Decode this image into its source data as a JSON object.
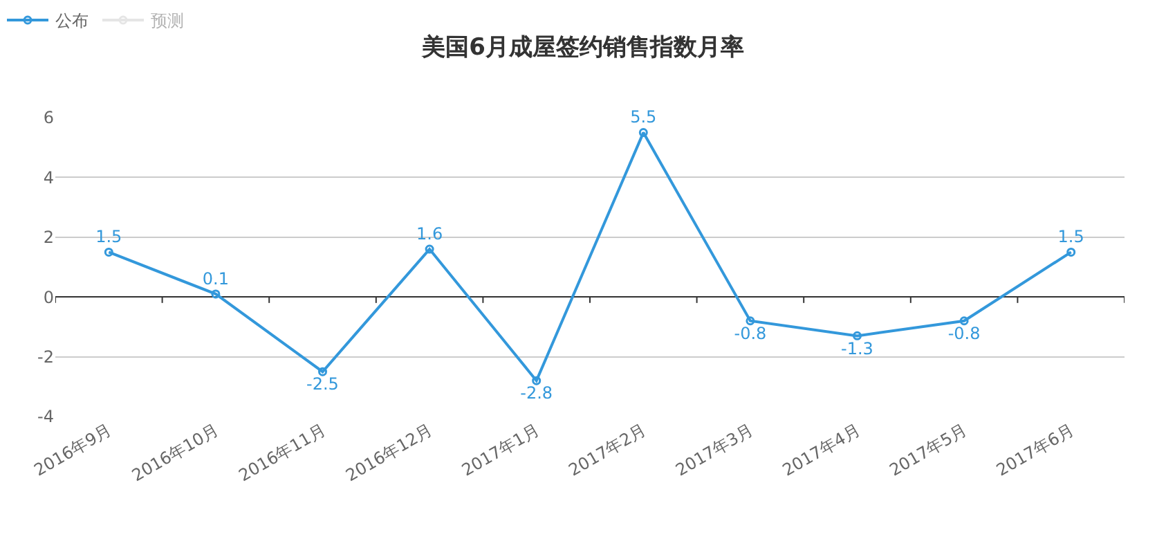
{
  "chart_data": {
    "type": "line",
    "title": "美国6月成屋签约销售指数月率",
    "categories": [
      "2016年9月",
      "2016年10月",
      "2016年11月",
      "2016年12月",
      "2017年1月",
      "2017年2月",
      "2017年3月",
      "2017年4月",
      "2017年5月",
      "2017年6月"
    ],
    "series": [
      {
        "name": "公布",
        "color": "#3398db",
        "values": [
          1.5,
          0.1,
          -2.5,
          1.6,
          -2.8,
          5.5,
          -0.8,
          -1.3,
          -0.8,
          1.5
        ]
      },
      {
        "name": "预测",
        "color": "#cccccc",
        "values": [
          null,
          null,
          null,
          null,
          null,
          null,
          null,
          null,
          null,
          null
        ]
      }
    ],
    "ylim": [
      -4,
      6
    ],
    "yticks": [
      -4,
      -2,
      0,
      2,
      4,
      6
    ],
    "grid": "y",
    "legend": "top left",
    "marker": "circle",
    "line_style": "solid",
    "data_labels": true
  }
}
